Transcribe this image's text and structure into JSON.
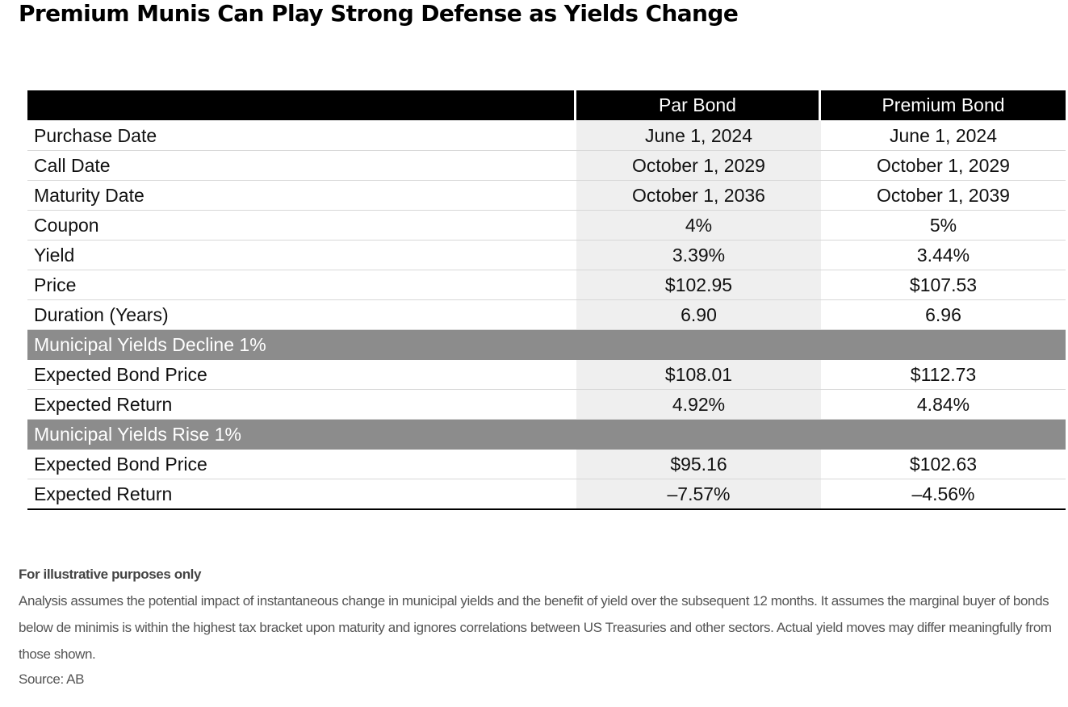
{
  "title": "Premium Munis Can Play Strong Defense as Yields Change",
  "chart_data": {
    "type": "table",
    "columns": [
      "",
      "Par Bond",
      "Premium Bond"
    ],
    "rows": [
      {
        "label": "Purchase Date",
        "par": "June 1, 2024",
        "premium": "June 1, 2024"
      },
      {
        "label": "Call Date",
        "par": "October 1, 2029",
        "premium": "October 1, 2029"
      },
      {
        "label": "Maturity Date",
        "par": "October 1, 2036",
        "premium": "October 1, 2039"
      },
      {
        "label": "Coupon",
        "par": "4%",
        "premium": "5%"
      },
      {
        "label": "Yield",
        "par": "3.39%",
        "premium": "3.44%"
      },
      {
        "label": "Price",
        "par": "$102.95",
        "premium": "$107.53"
      },
      {
        "label": "Duration (Years)",
        "par": "6.90",
        "premium": "6.96"
      },
      {
        "section": "Municipal Yields Decline 1%"
      },
      {
        "label": "Expected Bond Price",
        "par": "$108.01",
        "premium": "$112.73"
      },
      {
        "label": "Expected Return",
        "par": "4.92%",
        "premium": "4.84%"
      },
      {
        "section": "Municipal Yields Rise 1%"
      },
      {
        "label": "Expected Bond Price",
        "par": "$95.16",
        "premium": "$102.63"
      },
      {
        "label": "Expected Return",
        "par": "–7.57%",
        "premium": "–4.56%"
      }
    ]
  },
  "notes": {
    "illustrative": "For illustrative purposes only",
    "analysis": "Analysis assumes the potential impact of instantaneous change in municipal yields and the benefit of yield over the subsequent 12 months. It assumes the marginal buyer of bonds below de minimis is within the highest tax bracket upon maturity and ignores correlations between US Treasuries and other sectors. Actual yield moves may differ meaningfully from those shown.",
    "source": "Source: AB"
  },
  "colors": {
    "header_bg": "#000000",
    "section_bg": "#8c8c8c",
    "par_column_bg": "#efefef"
  }
}
